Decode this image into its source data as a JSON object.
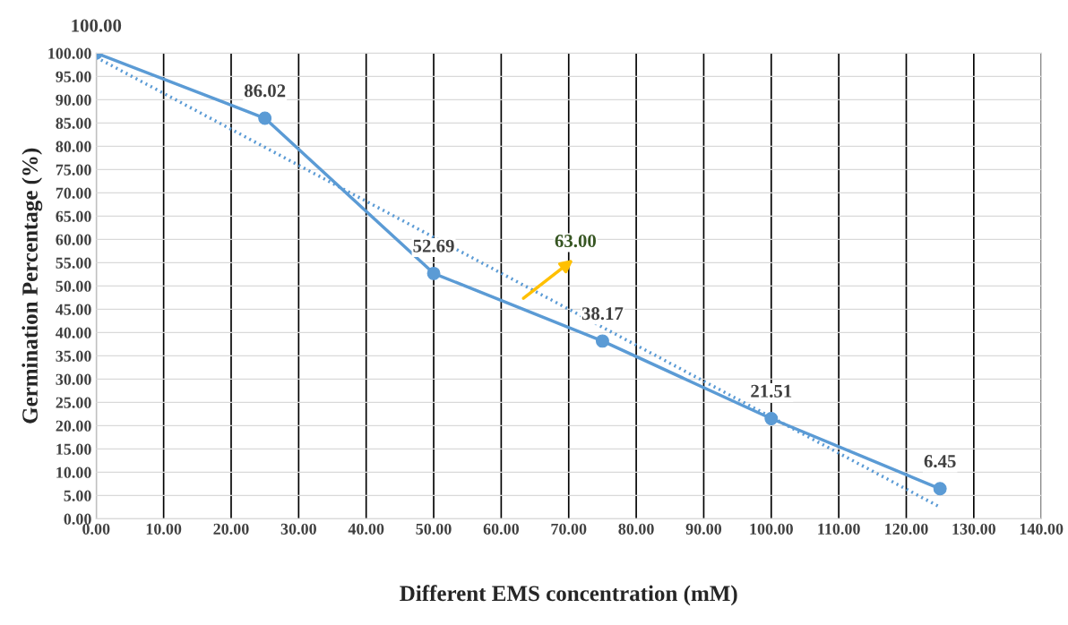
{
  "chart_data": {
    "type": "line",
    "xlabel": "Different EMS concentration (mM)",
    "ylabel": "Germination Percentage (%)",
    "series": [
      {
        "color": "#5b9bd5",
        "x": [
          0,
          25,
          50,
          75,
          100,
          125
        ],
        "values": [
          100,
          86.02,
          52.69,
          38.17,
          21.51,
          6.45
        ],
        "value_labels": [
          "100.00",
          "86.02",
          "52.69",
          "38.17",
          "21.51",
          "6.45"
        ],
        "marker": "circle",
        "line_style": "solid"
      },
      {
        "type": "line",
        "color": "#5b9bd5",
        "x": [
          0,
          125
        ],
        "values": [
          99.1,
          2.5
        ],
        "marker": "none",
        "line_style": "dotted"
      }
    ],
    "annotations": [
      "63.00"
    ],
    "xlim": [
      0,
      140
    ],
    "xticks": [
      {
        "value": 0,
        "label": "0.00"
      },
      {
        "value": 10,
        "label": "10.00"
      },
      {
        "value": 20,
        "label": "20.00"
      },
      {
        "value": 30,
        "label": "30.00"
      },
      {
        "value": 40,
        "label": "40.00"
      },
      {
        "value": 50,
        "label": "50.00"
      },
      {
        "value": 60,
        "label": "60.00"
      },
      {
        "value": 70,
        "label": "70.00"
      },
      {
        "value": 80,
        "label": "80.00"
      },
      {
        "value": 90,
        "label": "90.00"
      },
      {
        "value": 100,
        "label": "100.00"
      },
      {
        "value": 110,
        "label": "110.00"
      },
      {
        "value": 120,
        "label": "120.00"
      },
      {
        "value": 130,
        "label": "130.00"
      },
      {
        "value": 140,
        "label": "140.00"
      }
    ],
    "ylim": [
      0,
      100
    ],
    "yticks": [
      {
        "value": 0,
        "label": "0.00"
      },
      {
        "value": 5,
        "label": "5.00"
      },
      {
        "value": 10,
        "label": "10.00"
      },
      {
        "value": 15,
        "label": "15.00"
      },
      {
        "value": 20,
        "label": "20.00"
      },
      {
        "value": 25,
        "label": "25.00"
      },
      {
        "value": 30,
        "label": "30.00"
      },
      {
        "value": 35,
        "label": "35.00"
      },
      {
        "value": 40,
        "label": "40.00"
      },
      {
        "value": 45,
        "label": "45.00"
      },
      {
        "value": 50,
        "label": "50.00"
      },
      {
        "value": 55,
        "label": "55.00"
      },
      {
        "value": 60,
        "label": "60.00"
      },
      {
        "value": 65,
        "label": "65.00"
      },
      {
        "value": 70,
        "label": "70.00"
      },
      {
        "value": 75,
        "label": "75.00"
      },
      {
        "value": 80,
        "label": "80.00"
      },
      {
        "value": 85,
        "label": "85.00"
      },
      {
        "value": 90,
        "label": "90.00"
      },
      {
        "value": 95,
        "label": "95.00"
      },
      {
        "value": 100,
        "label": "100.00"
      }
    ],
    "grid": true
  }
}
